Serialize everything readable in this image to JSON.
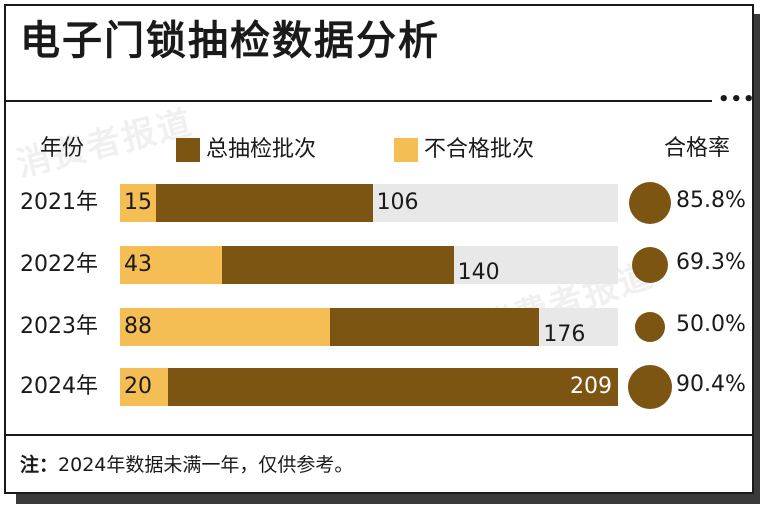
{
  "title": "电子门锁抽检数据分析",
  "header": {
    "year_label": "年份",
    "rate_label": "合格率"
  },
  "legend": {
    "total_label": "总抽检批次",
    "fail_label": "不合格批次"
  },
  "colors": {
    "total": "#7d5513",
    "fail": "#f5be55",
    "track": "#e8e8e8",
    "rate_dot": "#7d5513"
  },
  "watermark": "消费者报道",
  "note": {
    "prefix": "注：",
    "text": "2024年数据未满一年，仅供参考。"
  },
  "chart_data": {
    "type": "bar",
    "title": "电子门锁抽检数据分析",
    "categories": [
      "2021年",
      "2022年",
      "2023年",
      "2024年"
    ],
    "series": [
      {
        "name": "总抽检批次",
        "values": [
          106,
          140,
          176,
          209
        ]
      },
      {
        "name": "不合格批次",
        "values": [
          15,
          43,
          88,
          20
        ]
      }
    ],
    "rates": [
      85.8,
      69.3,
      50.0,
      90.4
    ],
    "rate_labels": [
      "85.8%",
      "69.3%",
      "50.0%",
      "90.4%"
    ],
    "xlim": [
      0,
      209
    ],
    "legend_position": "top"
  }
}
